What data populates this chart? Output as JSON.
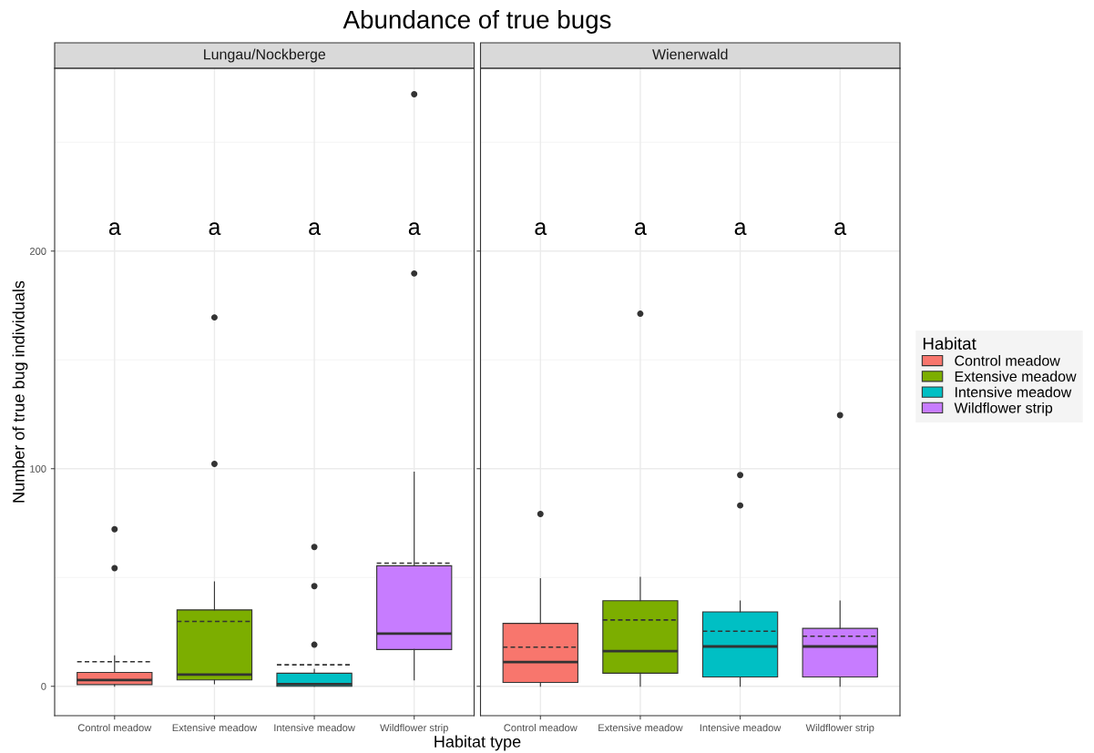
{
  "chart_data": [
    {
      "type": "box",
      "title": "Abundance of true bugs",
      "subtitle": "Lungau/Nockberge",
      "xlabel": "Habitat type",
      "ylabel": "Number of true bug individuals",
      "legend_title": "Habitat",
      "legend": "right",
      "categories": [
        "Control meadow",
        "Extensive meadow",
        "Intensive meadow",
        "Wildflower strip"
      ],
      "series": [
        {
          "name": "Control meadow",
          "color": "#f8766d",
          "boxes": [
            {
              "low": 0,
              "q1": 0.8,
              "median": 2.9,
              "q3": 6.4,
              "high": 14,
              "mean": 11.3,
              "outliers": [
                54.3,
                72.2
              ]
            },
            null,
            null,
            null
          ]
        },
        {
          "name": "Extensive meadow",
          "color": "#7cae00",
          "boxes": [
            null,
            {
              "low": 1.2,
              "q1": 2.9,
              "median": 5.4,
              "q3": 35.1,
              "high": 48,
              "mean": 29.8,
              "outliers": [
                102.2,
                169.5
              ]
            },
            null,
            null
          ]
        },
        {
          "name": "Intensive meadow",
          "color": "#00bfc4",
          "boxes": [
            null,
            null,
            {
              "low": 0,
              "q1": 0,
              "median": 1,
              "q3": 6,
              "high": 7.8,
              "mean": 9.9,
              "outliers": [
                19.1,
                46,
                64
              ]
            },
            null
          ]
        },
        {
          "name": "Wildflower strip",
          "color": "#c77cff",
          "boxes": [
            null,
            null,
            null,
            {
              "low": 2.9,
              "q1": 16.9,
              "median": 24.2,
              "q3": 55.4,
              "high": 98.4,
              "mean": 56.6,
              "outliers": [
                189.7,
                272.1
              ]
            }
          ]
        }
      ],
      "annotations": [
        "a",
        "a",
        "a",
        "a"
      ],
      "ylim": [
        -13.5,
        284
      ],
      "yticks": [
        0,
        100,
        200
      ],
      "grid": true
    },
    {
      "type": "box",
      "subtitle": "Wienerwald",
      "categories": [
        "Control meadow",
        "Extensive meadow",
        "Intensive meadow",
        "Wildflower strip"
      ],
      "series": [
        {
          "color": "#f8766d",
          "boxes": [
            {
              "low": 0,
              "q1": 1.8,
              "median": 11.1,
              "q3": 28.9,
              "high": 49.4,
              "mean": 18,
              "outliers": [
                79.2
              ]
            },
            null,
            null,
            null
          ]
        },
        {
          "color": "#7cae00",
          "boxes": [
            null,
            {
              "low": 0,
              "q1": 6,
              "median": 16.2,
              "q3": 39.3,
              "high": 50.1,
              "mean": 30.5,
              "outliers": [
                171.2
              ]
            },
            null,
            null
          ]
        },
        {
          "color": "#00bfc4",
          "boxes": [
            null,
            null,
            {
              "low": 0,
              "q1": 4.3,
              "median": 18.3,
              "q3": 34.2,
              "high": 39.2,
              "mean": 25.3,
              "outliers": [
                83.1,
                97.1
              ]
            },
            null
          ]
        },
        {
          "color": "#c77cff",
          "boxes": [
            null,
            null,
            null,
            {
              "low": 0,
              "q1": 4.3,
              "median": 18.3,
              "q3": 26.6,
              "high": 39.2,
              "mean": 23,
              "outliers": [
                124.6
              ]
            }
          ]
        }
      ],
      "annotations": [
        "a",
        "a",
        "a",
        "a"
      ],
      "ylim": [
        -13.5,
        284
      ],
      "yticks": [
        0,
        100,
        200
      ],
      "grid": true,
      "tick_labels": "x"
    }
  ]
}
